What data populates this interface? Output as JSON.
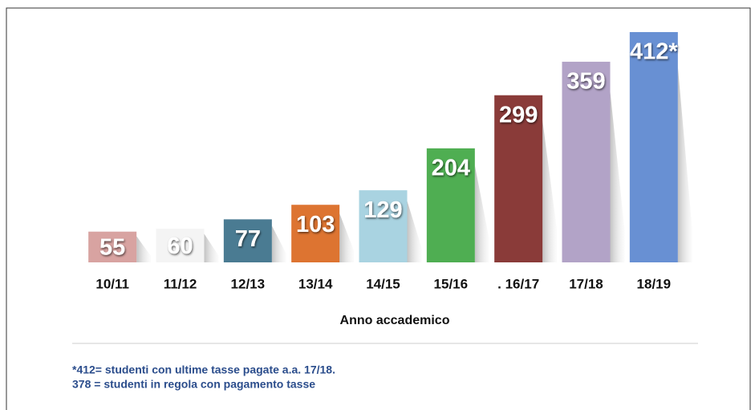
{
  "chart_data": {
    "type": "bar",
    "categories": [
      "10/11",
      "11/12",
      "12/13",
      "13/14",
      "14/15",
      "15/16",
      ". 16/17",
      "17/18",
      "18/19"
    ],
    "values": [
      55,
      60,
      77,
      103,
      129,
      204,
      299,
      359,
      412
    ],
    "value_labels": [
      "55",
      "60",
      "77",
      "103",
      "129",
      "204",
      "299",
      "359",
      "412*"
    ],
    "colors": [
      "#d8a3a1",
      "#f4f4f4",
      "#4a7b92",
      "#dd7431",
      "#a9d3e1",
      "#4fae52",
      "#8a3b39",
      "#b2a3c7",
      "#6890d3"
    ],
    "ylim": [
      0,
      412
    ],
    "xlabel": "Anno accademico",
    "notes": [
      "*412= studenti con ultime tasse pagate a.a. 17/18.",
      "378 = studenti in regola con pagamento tasse"
    ]
  }
}
